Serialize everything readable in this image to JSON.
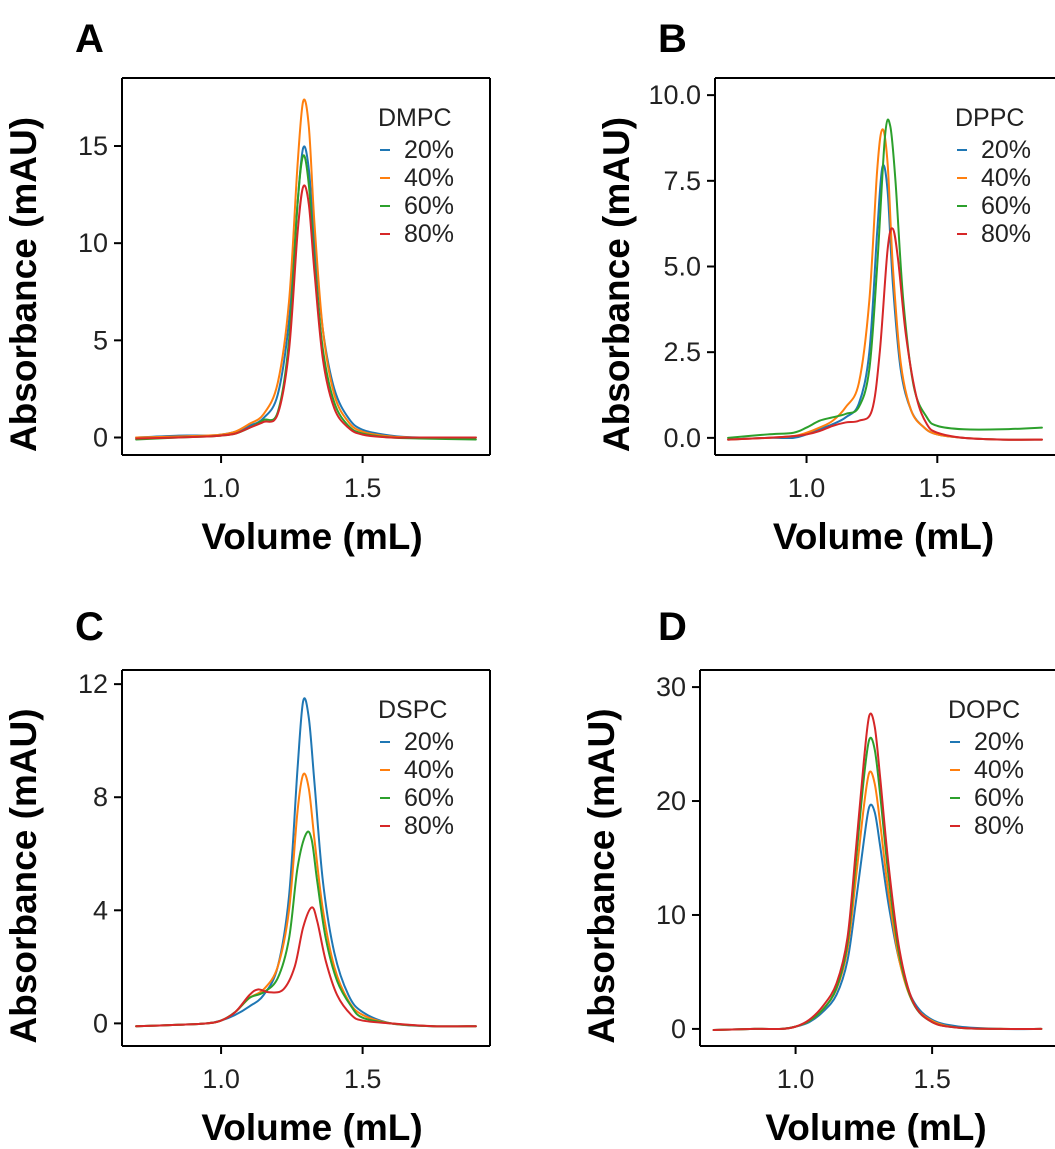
{
  "chart_data": [
    {
      "panel": "A",
      "type": "line",
      "xlabel": "Volume (mL)",
      "ylabel": "Absorbance (mAU)",
      "xlim": [
        0.65,
        1.95
      ],
      "ylim": [
        -0.9,
        18.5
      ],
      "xticks": [
        1.0,
        1.5
      ],
      "xtick_labels": [
        "1.0",
        "1.5"
      ],
      "yticks": [
        0,
        5,
        10,
        15
      ],
      "ytick_labels": [
        "0",
        "5",
        "10",
        "15"
      ],
      "legend_title": "DMPC",
      "legend_position": "top-right",
      "series": [
        {
          "name": "20%",
          "color": "#1f77b4",
          "x": [
            0.7,
            0.85,
            0.95,
            1.0,
            1.05,
            1.1,
            1.15,
            1.2,
            1.24,
            1.27,
            1.29,
            1.31,
            1.33,
            1.36,
            1.4,
            1.45,
            1.5,
            1.6,
            1.7,
            1.9
          ],
          "y": [
            0.0,
            0.1,
            0.1,
            0.15,
            0.3,
            0.6,
            1.0,
            2.2,
            6.0,
            12.0,
            14.9,
            13.8,
            10.0,
            5.5,
            2.5,
            1.0,
            0.4,
            0.1,
            0.0,
            0.0
          ]
        },
        {
          "name": "40%",
          "color": "#ff7f0e",
          "x": [
            0.7,
            0.85,
            0.95,
            1.0,
            1.05,
            1.1,
            1.15,
            1.2,
            1.24,
            1.27,
            1.29,
            1.31,
            1.33,
            1.36,
            1.4,
            1.45,
            1.5,
            1.6,
            1.7,
            1.9
          ],
          "y": [
            0.0,
            0.05,
            0.1,
            0.15,
            0.3,
            0.7,
            1.2,
            2.8,
            7.0,
            14.0,
            17.3,
            16.0,
            11.0,
            5.5,
            2.2,
            0.8,
            0.3,
            0.05,
            0.0,
            0.0
          ]
        },
        {
          "name": "60%",
          "color": "#2ca02c",
          "x": [
            0.7,
            0.85,
            0.95,
            1.0,
            1.05,
            1.1,
            1.15,
            1.2,
            1.24,
            1.27,
            1.29,
            1.31,
            1.33,
            1.36,
            1.4,
            1.45,
            1.5,
            1.6,
            1.7,
            1.9
          ],
          "y": [
            -0.1,
            0.0,
            0.05,
            0.1,
            0.2,
            0.5,
            0.9,
            1.3,
            5.0,
            12.0,
            14.5,
            13.0,
            9.0,
            4.5,
            1.8,
            0.6,
            0.2,
            0.0,
            -0.05,
            -0.1
          ]
        },
        {
          "name": "80%",
          "color": "#d62728",
          "x": [
            0.7,
            0.85,
            0.95,
            1.0,
            1.05,
            1.1,
            1.15,
            1.2,
            1.24,
            1.27,
            1.29,
            1.31,
            1.33,
            1.36,
            1.4,
            1.45,
            1.5,
            1.6,
            1.7,
            1.9
          ],
          "y": [
            -0.05,
            0.0,
            0.05,
            0.1,
            0.2,
            0.5,
            0.8,
            1.2,
            4.5,
            10.5,
            12.9,
            12.0,
            8.5,
            4.0,
            1.5,
            0.5,
            0.15,
            0.0,
            0.0,
            0.0
          ]
        }
      ]
    },
    {
      "panel": "B",
      "type": "line",
      "xlabel": "Volume (mL)",
      "ylabel": "Absorbance (mAU)",
      "xlim": [
        0.65,
        1.95
      ],
      "ylim": [
        -0.5,
        10.5
      ],
      "xticks": [
        1.0,
        1.5
      ],
      "xtick_labels": [
        "1.0",
        "1.5"
      ],
      "yticks": [
        0.0,
        2.5,
        5.0,
        7.5,
        10.0
      ],
      "ytick_labels": [
        "0.0",
        "2.5",
        "5.0",
        "7.5",
        "10.0"
      ],
      "legend_title": "DPPC",
      "legend_position": "top-right",
      "series": [
        {
          "name": "20%",
          "color": "#1f77b4",
          "x": [
            0.7,
            0.85,
            0.95,
            1.0,
            1.05,
            1.1,
            1.15,
            1.2,
            1.24,
            1.27,
            1.29,
            1.31,
            1.33,
            1.36,
            1.4,
            1.45,
            1.5,
            1.6,
            1.75,
            1.9
          ],
          "y": [
            -0.05,
            0.0,
            0.0,
            0.1,
            0.25,
            0.4,
            0.6,
            1.0,
            2.5,
            6.0,
            7.9,
            7.2,
            4.5,
            2.0,
            0.8,
            0.3,
            0.1,
            0.0,
            -0.05,
            -0.05
          ]
        },
        {
          "name": "40%",
          "color": "#ff7f0e",
          "x": [
            0.7,
            0.85,
            0.95,
            1.0,
            1.05,
            1.1,
            1.15,
            1.2,
            1.24,
            1.27,
            1.29,
            1.31,
            1.33,
            1.36,
            1.4,
            1.45,
            1.5,
            1.6,
            1.75,
            1.9
          ],
          "y": [
            -0.05,
            0.0,
            0.05,
            0.15,
            0.3,
            0.5,
            0.9,
            1.6,
            4.0,
            7.8,
            9.0,
            8.0,
            5.0,
            2.2,
            0.8,
            0.3,
            0.1,
            0.0,
            -0.05,
            -0.05
          ]
        },
        {
          "name": "60%",
          "color": "#2ca02c",
          "x": [
            0.7,
            0.85,
            0.95,
            1.0,
            1.05,
            1.1,
            1.15,
            1.2,
            1.24,
            1.27,
            1.3,
            1.32,
            1.34,
            1.37,
            1.41,
            1.46,
            1.5,
            1.6,
            1.75,
            1.9
          ],
          "y": [
            0.0,
            0.1,
            0.15,
            0.3,
            0.5,
            0.6,
            0.7,
            0.9,
            2.0,
            5.0,
            8.8,
            9.1,
            7.5,
            4.0,
            1.5,
            0.6,
            0.35,
            0.25,
            0.25,
            0.3
          ]
        },
        {
          "name": "80%",
          "color": "#d62728",
          "x": [
            0.7,
            0.85,
            0.95,
            1.0,
            1.05,
            1.1,
            1.15,
            1.2,
            1.25,
            1.28,
            1.31,
            1.33,
            1.35,
            1.38,
            1.42,
            1.46,
            1.5,
            1.6,
            1.75,
            1.9
          ],
          "y": [
            -0.05,
            0.0,
            0.05,
            0.1,
            0.2,
            0.35,
            0.45,
            0.5,
            0.8,
            2.5,
            5.5,
            6.1,
            5.2,
            3.0,
            1.2,
            0.4,
            0.15,
            0.0,
            -0.05,
            -0.05
          ]
        }
      ]
    },
    {
      "panel": "C",
      "type": "line",
      "xlabel": "Volume (mL)",
      "ylabel": "Absorbance (mAU)",
      "xlim": [
        0.65,
        1.95
      ],
      "ylim": [
        -0.8,
        12.5
      ],
      "xticks": [
        1.0,
        1.5
      ],
      "xtick_labels": [
        "1.0",
        "1.5"
      ],
      "yticks": [
        0,
        4,
        8,
        12
      ],
      "ytick_labels": [
        "0",
        "4",
        "8",
        "12"
      ],
      "legend_title": "DSPC",
      "legend_position": "top-right",
      "series": [
        {
          "name": "20%",
          "color": "#1f77b4",
          "x": [
            0.7,
            0.85,
            0.95,
            1.0,
            1.05,
            1.1,
            1.15,
            1.2,
            1.24,
            1.27,
            1.29,
            1.31,
            1.33,
            1.36,
            1.4,
            1.45,
            1.5,
            1.6,
            1.75,
            1.9
          ],
          "y": [
            -0.1,
            -0.05,
            0.0,
            0.1,
            0.3,
            0.6,
            1.0,
            2.0,
            4.5,
            9.0,
            11.4,
            10.8,
            8.5,
            5.0,
            2.5,
            1.0,
            0.4,
            0.0,
            -0.1,
            -0.1
          ]
        },
        {
          "name": "40%",
          "color": "#ff7f0e",
          "x": [
            0.7,
            0.85,
            0.95,
            1.0,
            1.05,
            1.1,
            1.15,
            1.2,
            1.24,
            1.27,
            1.29,
            1.31,
            1.33,
            1.36,
            1.4,
            1.45,
            1.5,
            1.6,
            1.75,
            1.9
          ],
          "y": [
            -0.1,
            -0.05,
            0.0,
            0.1,
            0.4,
            0.9,
            1.2,
            2.0,
            4.0,
            7.5,
            8.8,
            8.3,
            6.5,
            4.0,
            2.0,
            0.8,
            0.3,
            0.0,
            -0.1,
            -0.1
          ]
        },
        {
          "name": "60%",
          "color": "#2ca02c",
          "x": [
            0.7,
            0.85,
            0.95,
            1.0,
            1.05,
            1.1,
            1.15,
            1.2,
            1.24,
            1.27,
            1.3,
            1.32,
            1.34,
            1.37,
            1.41,
            1.46,
            1.5,
            1.6,
            1.75,
            1.9
          ],
          "y": [
            -0.1,
            -0.05,
            0.0,
            0.1,
            0.4,
            0.9,
            1.1,
            1.6,
            3.0,
            5.5,
            6.7,
            6.5,
            5.0,
            3.0,
            1.5,
            0.6,
            0.2,
            0.0,
            -0.1,
            -0.1
          ]
        },
        {
          "name": "80%",
          "color": "#d62728",
          "x": [
            0.7,
            0.85,
            0.95,
            1.0,
            1.05,
            1.1,
            1.13,
            1.17,
            1.22,
            1.26,
            1.29,
            1.32,
            1.34,
            1.37,
            1.41,
            1.46,
            1.5,
            1.6,
            1.75,
            1.9
          ],
          "y": [
            -0.1,
            -0.05,
            0.0,
            0.1,
            0.4,
            1.0,
            1.2,
            1.1,
            1.2,
            2.0,
            3.4,
            4.1,
            3.6,
            2.2,
            1.0,
            0.3,
            0.1,
            0.0,
            -0.1,
            -0.1
          ]
        }
      ]
    },
    {
      "panel": "D",
      "type": "line",
      "xlabel": "Volume (mL)",
      "ylabel": "Absorbance (mAU)",
      "xlim": [
        0.65,
        1.95
      ],
      "ylim": [
        -1.5,
        31.5
      ],
      "xticks": [
        1.0,
        1.5
      ],
      "xtick_labels": [
        "1.0",
        "1.5"
      ],
      "yticks": [
        0,
        10,
        20,
        30
      ],
      "ytick_labels": [
        "0",
        "10",
        "20",
        "30"
      ],
      "legend_title": "DOPC",
      "legend_position": "top-right",
      "series": [
        {
          "name": "20%",
          "color": "#1f77b4",
          "x": [
            0.7,
            0.85,
            0.95,
            1.0,
            1.05,
            1.1,
            1.15,
            1.19,
            1.22,
            1.25,
            1.27,
            1.29,
            1.31,
            1.34,
            1.38,
            1.43,
            1.5,
            1.6,
            1.75,
            1.9
          ],
          "y": [
            -0.1,
            0.0,
            0.0,
            0.2,
            0.6,
            1.5,
            3.0,
            6.0,
            11.0,
            16.5,
            19.5,
            19.0,
            16.0,
            11.0,
            6.0,
            2.5,
            0.8,
            0.2,
            0.0,
            0.0
          ]
        },
        {
          "name": "40%",
          "color": "#ff7f0e",
          "x": [
            0.7,
            0.85,
            0.95,
            1.0,
            1.05,
            1.1,
            1.15,
            1.19,
            1.22,
            1.25,
            1.27,
            1.29,
            1.31,
            1.34,
            1.38,
            1.43,
            1.5,
            1.6,
            1.75,
            1.9
          ],
          "y": [
            -0.1,
            0.0,
            0.0,
            0.2,
            0.7,
            1.7,
            3.5,
            7.0,
            13.0,
            19.5,
            22.5,
            21.5,
            18.0,
            12.0,
            6.0,
            2.3,
            0.7,
            0.1,
            0.0,
            0.0
          ]
        },
        {
          "name": "60%",
          "color": "#2ca02c",
          "x": [
            0.7,
            0.85,
            0.95,
            1.0,
            1.05,
            1.1,
            1.15,
            1.19,
            1.22,
            1.25,
            1.27,
            1.29,
            1.31,
            1.34,
            1.38,
            1.43,
            1.5,
            1.6,
            1.75,
            1.9
          ],
          "y": [
            -0.1,
            0.0,
            0.0,
            0.2,
            0.7,
            1.7,
            3.6,
            7.5,
            14.5,
            22.0,
            25.4,
            24.5,
            20.5,
            13.5,
            6.5,
            2.3,
            0.6,
            0.1,
            0.0,
            0.0
          ]
        },
        {
          "name": "80%",
          "color": "#d62728",
          "x": [
            0.7,
            0.85,
            0.95,
            1.0,
            1.05,
            1.1,
            1.15,
            1.19,
            1.22,
            1.25,
            1.27,
            1.29,
            1.31,
            1.34,
            1.38,
            1.43,
            1.5,
            1.6,
            1.75,
            1.9
          ],
          "y": [
            -0.1,
            0.0,
            0.0,
            0.2,
            0.8,
            2.0,
            4.0,
            8.0,
            15.5,
            23.5,
            27.5,
            26.5,
            22.0,
            14.5,
            7.0,
            2.4,
            0.6,
            0.1,
            0.0,
            0.0
          ]
        }
      ]
    }
  ]
}
